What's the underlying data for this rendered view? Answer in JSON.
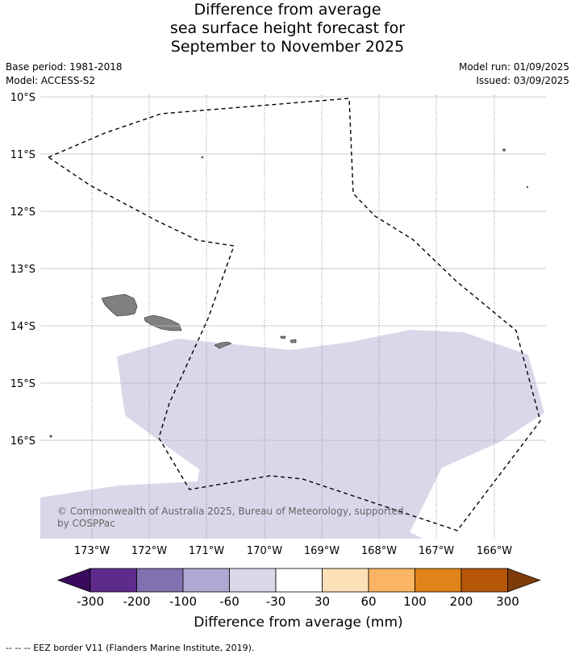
{
  "header": {
    "title_line1": "Difference from average",
    "title_line2": "sea surface height forecast for",
    "title_line3": "September to November 2025",
    "base_period": "Base period: 1981-2018",
    "model": "Model: ACCESS-S2",
    "model_run": "Model run: 01/09/2025",
    "issued": "Issued: 03/09/2025"
  },
  "map": {
    "lat_labels": [
      "10°S",
      "11°S",
      "12°S",
      "13°S",
      "14°S",
      "15°S",
      "16°S"
    ],
    "lon_labels": [
      "173°W",
      "172°W",
      "171°W",
      "170°W",
      "169°W",
      "168°W",
      "167°W",
      "166°W"
    ],
    "copyright": "© Commonwealth of Australia 2025, Bureau of Meteorology, supported by COSPPac",
    "colors": {
      "anomaly_fill": "#d8d8ea",
      "land": "#808080",
      "eez": "#000000"
    }
  },
  "colorbar": {
    "title": "Difference from average (mm)",
    "tick_labels": [
      "-300",
      "-200",
      "-100",
      "-60",
      "-30",
      "30",
      "60",
      "100",
      "200",
      "300"
    ],
    "colors": [
      "#3b0a5e",
      "#5e2a8c",
      "#8072b0",
      "#b0a8d2",
      "#d8d8ea",
      "#ffffff",
      "#fde0b7",
      "#fbb463",
      "#e08318",
      "#b65708",
      "#7f3b08"
    ]
  },
  "footer": {
    "text": "--  --  -- EEZ border V11 (Flanders Marine Institute, 2019)."
  }
}
